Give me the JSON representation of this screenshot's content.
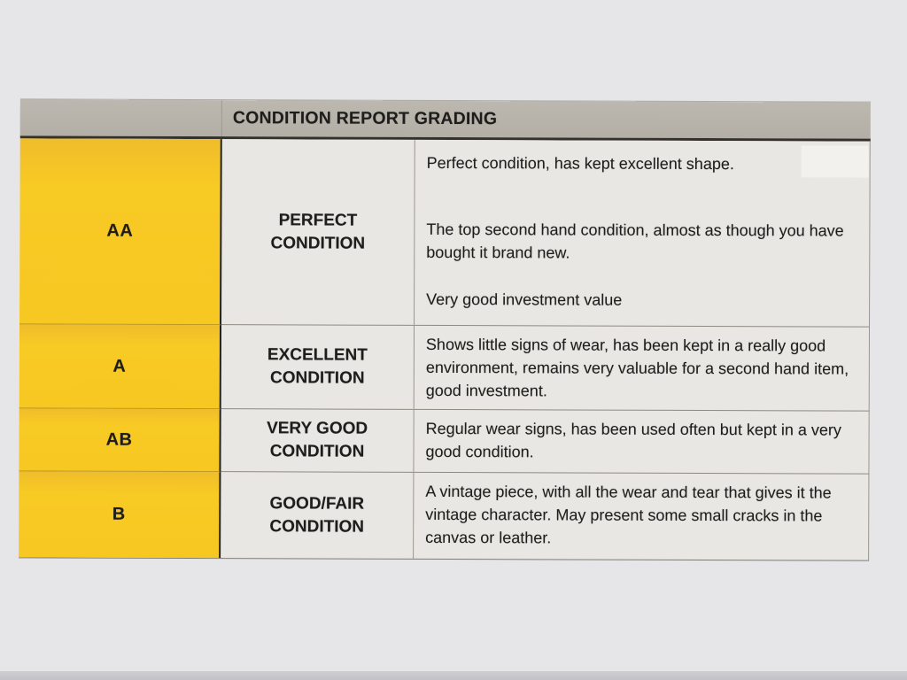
{
  "photo": {
    "colors": {
      "paper": "#e6e5e7",
      "header_bg": "#b7b3ab",
      "grade_column_yellow": "#f7c722",
      "cell_bg": "#e9e7e3",
      "text": "#1e1d1b"
    }
  },
  "table": {
    "title": "CONDITION REPORT GRADING",
    "rows": [
      {
        "grade": "AA",
        "condition": "PERFECT CONDITION",
        "description_paragraphs": [
          "Perfect condition, has kept excellent shape.",
          "The top second hand condition, almost as though you have bought it brand new.",
          "Very good investment value"
        ]
      },
      {
        "grade": "A",
        "condition": "EXCELLENT CONDITION",
        "description_paragraphs": [
          "Shows little signs of wear, has been kept in a really good environment, remains very valuable for a second hand item, good investment."
        ]
      },
      {
        "grade": "AB",
        "condition": "VERY GOOD CONDITION",
        "description_paragraphs": [
          "Regular wear signs, has been used often but kept in a very good condition."
        ]
      },
      {
        "grade": "B",
        "condition": "GOOD/FAIR CONDITION",
        "description_paragraphs": [
          "A vintage piece, with all the wear and tear that gives it the vintage character. May present some small cracks in the canvas or leather."
        ]
      }
    ]
  }
}
